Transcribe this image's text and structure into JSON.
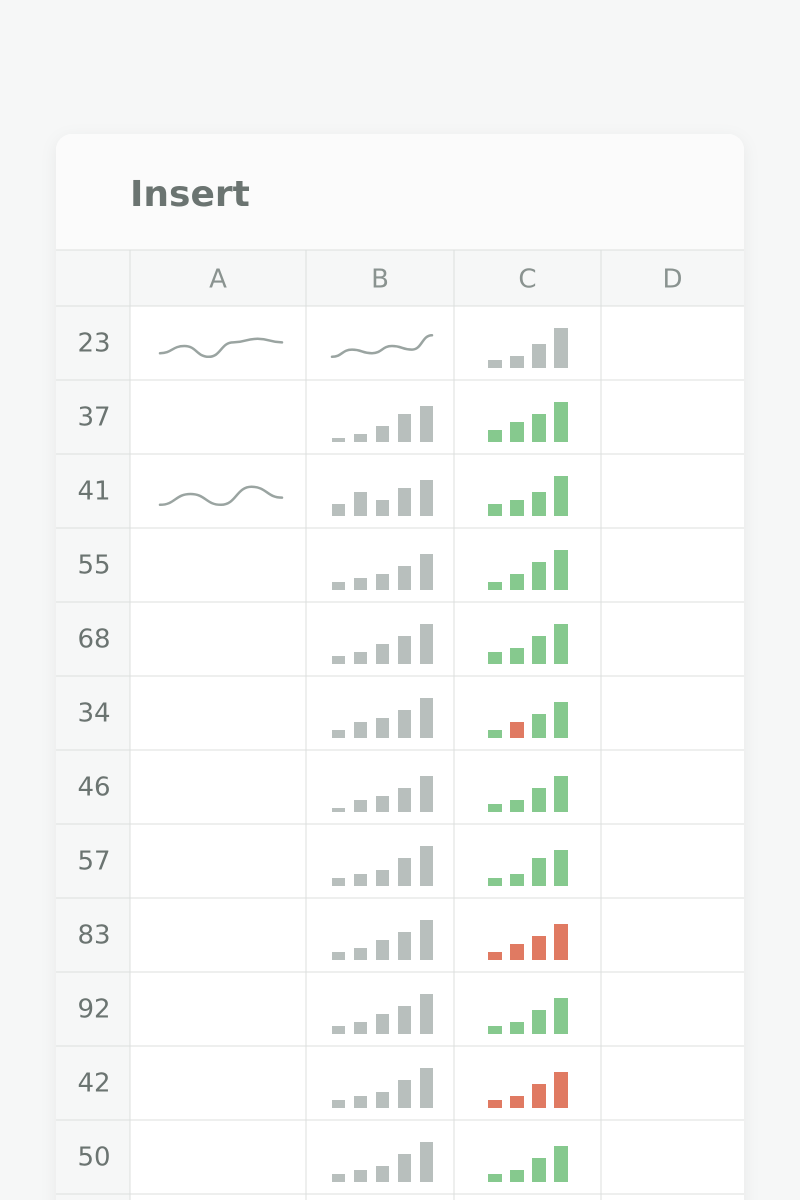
{
  "title": "Insert",
  "columns": [
    "A",
    "B",
    "C",
    "D"
  ],
  "rows": [
    {
      "label": "23",
      "a": {
        "type": "line",
        "color": "#9aa4a1",
        "values": [
          3,
          5,
          2,
          6,
          7,
          6
        ]
      },
      "b": {
        "type": "line",
        "color": "#9aa4a1",
        "values": [
          2,
          4,
          3,
          5,
          4,
          8
        ]
      },
      "c": {
        "type": "bar",
        "color": "#b8bfbd",
        "values": [
          2,
          3,
          6,
          10
        ]
      }
    },
    {
      "label": "37",
      "b": {
        "type": "bar",
        "color": "#b8bfbd",
        "values": [
          1,
          2,
          4,
          7,
          9
        ]
      },
      "c": {
        "type": "bar",
        "color": "#86c98e",
        "values": [
          3,
          5,
          7,
          10
        ]
      }
    },
    {
      "label": "41",
      "a": {
        "type": "line",
        "color": "#9aa4a1",
        "values": [
          2,
          5,
          2,
          7,
          4
        ]
      },
      "b": {
        "type": "bar",
        "color": "#b8bfbd",
        "values": [
          3,
          6,
          4,
          7,
          9
        ]
      },
      "c": {
        "type": "bar",
        "color": "#86c98e",
        "values": [
          3,
          4,
          6,
          10
        ]
      }
    },
    {
      "label": "55",
      "b": {
        "type": "bar",
        "color": "#b8bfbd",
        "values": [
          2,
          3,
          4,
          6,
          9
        ]
      },
      "c": {
        "type": "bar",
        "color": "#86c98e",
        "values": [
          2,
          4,
          7,
          10
        ]
      }
    },
    {
      "label": "68",
      "b": {
        "type": "bar",
        "color": "#b8bfbd",
        "values": [
          2,
          3,
          5,
          7,
          10
        ]
      },
      "c": {
        "type": "bar",
        "color": "#86c98e",
        "values": [
          3,
          4,
          7,
          10
        ]
      }
    },
    {
      "label": "34",
      "b": {
        "type": "bar",
        "color": "#b8bfbd",
        "values": [
          2,
          4,
          5,
          7,
          10
        ]
      },
      "c": {
        "type": "bar",
        "colors": [
          "#86c98e",
          "#e07a62",
          "#86c98e",
          "#86c98e"
        ],
        "values": [
          2,
          4,
          6,
          9
        ]
      }
    },
    {
      "label": "46",
      "b": {
        "type": "bar",
        "color": "#b8bfbd",
        "values": [
          1,
          3,
          4,
          6,
          9
        ]
      },
      "c": {
        "type": "bar",
        "color": "#86c98e",
        "values": [
          2,
          3,
          6,
          9
        ]
      }
    },
    {
      "label": "57",
      "b": {
        "type": "bar",
        "color": "#b8bfbd",
        "values": [
          2,
          3,
          4,
          7,
          10
        ]
      },
      "c": {
        "type": "bar",
        "color": "#86c98e",
        "values": [
          2,
          3,
          7,
          9
        ]
      }
    },
    {
      "label": "83",
      "b": {
        "type": "bar",
        "color": "#b8bfbd",
        "values": [
          2,
          3,
          5,
          7,
          10
        ]
      },
      "c": {
        "type": "bar",
        "color": "#e07a62",
        "values": [
          2,
          4,
          6,
          9
        ]
      }
    },
    {
      "label": "92",
      "b": {
        "type": "bar",
        "color": "#b8bfbd",
        "values": [
          2,
          3,
          5,
          7,
          10
        ]
      },
      "c": {
        "type": "bar",
        "color": "#86c98e",
        "values": [
          2,
          3,
          6,
          9
        ]
      }
    },
    {
      "label": "42",
      "b": {
        "type": "bar",
        "color": "#b8bfbd",
        "values": [
          2,
          3,
          4,
          7,
          10
        ]
      },
      "c": {
        "type": "bar",
        "color": "#e07a62",
        "values": [
          2,
          3,
          6,
          9
        ]
      }
    },
    {
      "label": "50",
      "b": {
        "type": "bar",
        "color": "#b8bfbd",
        "values": [
          2,
          3,
          4,
          7,
          10
        ]
      },
      "c": {
        "type": "bar",
        "color": "#86c98e",
        "values": [
          2,
          3,
          6,
          9
        ]
      }
    }
  ]
}
